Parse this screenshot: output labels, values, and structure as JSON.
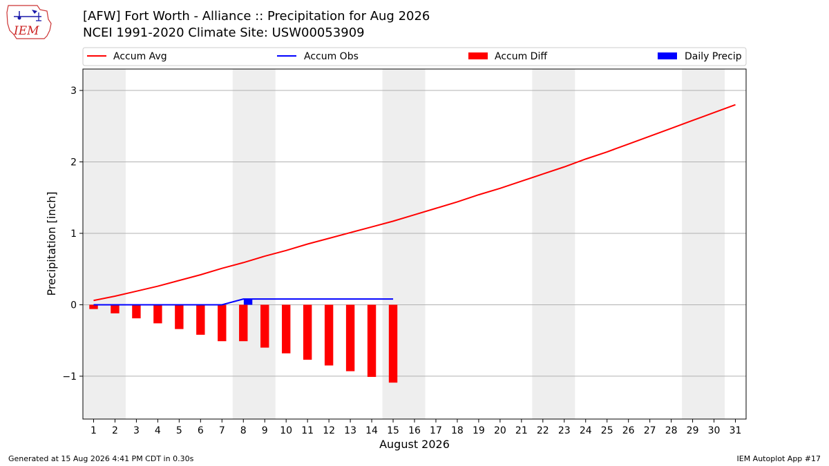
{
  "header": {
    "title_line1": "[AFW] Fort Worth - Alliance :: Precipitation for Aug 2026",
    "title_line2": "NCEI 1991-2020 Climate Site: USW00053909",
    "logo_text": "IEM"
  },
  "footer": {
    "generated": "Generated at 15 Aug 2026 4:41 PM CDT in 0.30s",
    "app": "IEM Autoplot App #17"
  },
  "colors": {
    "accum_avg": "#ff0000",
    "accum_obs": "#0000ff",
    "accum_diff": "#ff0000",
    "daily_precip": "#0000ff",
    "weekend_shade": "#eeeeee",
    "grid": "#b0b0b0"
  },
  "chart_data": {
    "type": "bar",
    "xlabel": "August 2026",
    "ylabel": "Precipitation [inch]",
    "ylim": [
      -1.6,
      3.3
    ],
    "yticks": [
      3,
      2,
      1,
      0,
      -1
    ],
    "ytick_labels": [
      "3",
      "2",
      "1",
      "0",
      "−1"
    ],
    "xlim": [
      0.5,
      31.5
    ],
    "x": [
      1,
      2,
      3,
      4,
      5,
      6,
      7,
      8,
      9,
      10,
      11,
      12,
      13,
      14,
      15,
      16,
      17,
      18,
      19,
      20,
      21,
      22,
      23,
      24,
      25,
      26,
      27,
      28,
      29,
      30,
      31
    ],
    "grid": "horizontal",
    "legend_position": "top",
    "weekend_shading": [
      [
        0.5,
        2.5
      ],
      [
        7.5,
        9.5
      ],
      [
        14.5,
        16.5
      ],
      [
        21.5,
        23.5
      ],
      [
        28.5,
        30.5
      ]
    ],
    "series": [
      {
        "name": "Accum Avg",
        "kind": "line",
        "x": [
          1,
          2,
          3,
          4,
          5,
          6,
          7,
          8,
          9,
          10,
          11,
          12,
          13,
          14,
          15,
          16,
          17,
          18,
          19,
          20,
          21,
          22,
          23,
          24,
          25,
          26,
          27,
          28,
          29,
          30,
          31
        ],
        "values": [
          0.06,
          0.12,
          0.19,
          0.26,
          0.34,
          0.42,
          0.51,
          0.59,
          0.68,
          0.76,
          0.85,
          0.93,
          1.01,
          1.09,
          1.17,
          1.26,
          1.35,
          1.44,
          1.54,
          1.63,
          1.73,
          1.83,
          1.93,
          2.04,
          2.14,
          2.25,
          2.36,
          2.47,
          2.58,
          2.69,
          2.8
        ]
      },
      {
        "name": "Accum Obs",
        "kind": "line",
        "x": [
          1,
          2,
          3,
          4,
          5,
          6,
          7,
          8,
          9,
          10,
          11,
          12,
          13,
          14,
          15
        ],
        "values": [
          0,
          0,
          0,
          0,
          0,
          0,
          0,
          0.08,
          0.08,
          0.08,
          0.08,
          0.08,
          0.08,
          0.08,
          0.08
        ]
      },
      {
        "name": "Accum Diff",
        "kind": "bar",
        "x": [
          1,
          2,
          3,
          4,
          5,
          6,
          7,
          8,
          9,
          10,
          11,
          12,
          13,
          14,
          15
        ],
        "values": [
          -0.06,
          -0.12,
          -0.19,
          -0.26,
          -0.34,
          -0.42,
          -0.51,
          -0.51,
          -0.6,
          -0.68,
          -0.77,
          -0.85,
          -0.93,
          -1.01,
          -1.09
        ]
      },
      {
        "name": "Daily Precip",
        "kind": "bar",
        "x": [
          8
        ],
        "values": [
          0.08
        ]
      }
    ]
  }
}
